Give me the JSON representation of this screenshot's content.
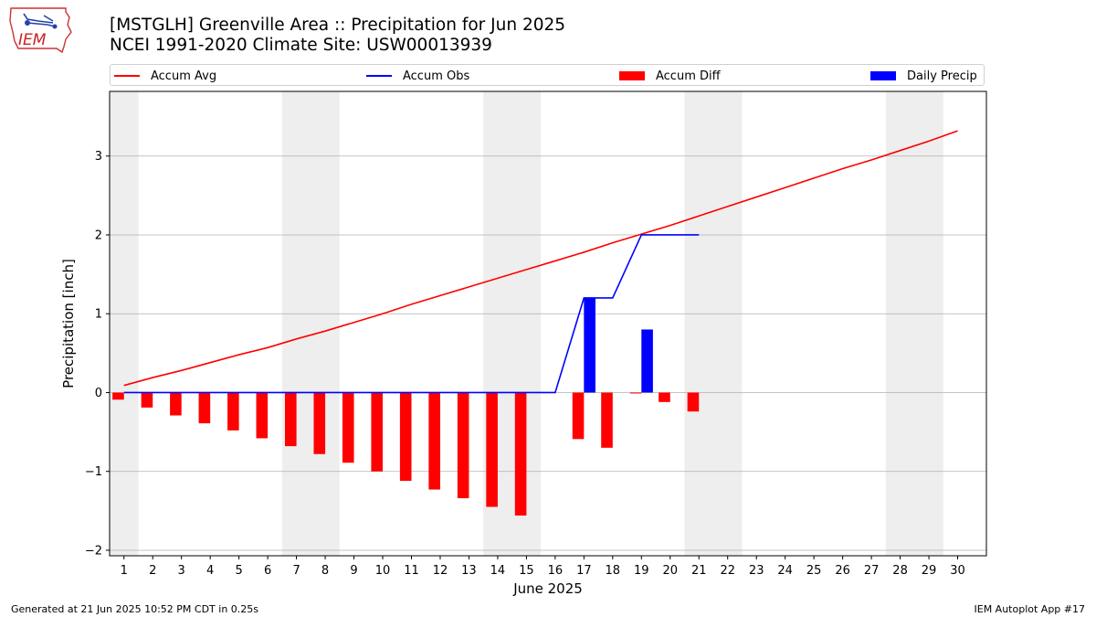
{
  "header": {
    "title_line1": "[MSTGLH] Greenville Area :: Precipitation for Jun 2025",
    "title_line2": "NCEI 1991-2020 Climate Site: USW00013939"
  },
  "logo": {
    "text": "IEM",
    "icon": "iem-iowa-logo"
  },
  "legend": [
    {
      "label": "Accum Avg",
      "kind": "line",
      "color": "#ff0000"
    },
    {
      "label": "Accum Obs",
      "kind": "line",
      "color": "#0000ff"
    },
    {
      "label": "Accum Diff",
      "kind": "box",
      "color": "#ff0000"
    },
    {
      "label": "Daily Precip",
      "kind": "box",
      "color": "#0000ff"
    }
  ],
  "footer": {
    "generated": "Generated at 21 Jun 2025 10:52 PM CDT in 0.25s",
    "app": "IEM Autoplot App #17"
  },
  "chart_data": {
    "type": "bar",
    "xlabel": "June 2025",
    "ylabel": "Precipitation [inch]",
    "xlim": [
      0.5,
      31
    ],
    "ylim": [
      -2.07,
      3.82
    ],
    "yticks": [
      -2,
      -1,
      0,
      1,
      2,
      3
    ],
    "ytick_labels": [
      "−2",
      "−1",
      "0",
      "1",
      "2",
      "3"
    ],
    "grid_y": true,
    "legend_position": "top",
    "days": [
      1,
      2,
      3,
      4,
      5,
      6,
      7,
      8,
      9,
      10,
      11,
      12,
      13,
      14,
      15,
      16,
      17,
      18,
      19,
      20,
      21,
      22,
      23,
      24,
      25,
      26,
      27,
      28,
      29,
      30
    ],
    "weekend_spans": [
      [
        0.5,
        1.5
      ],
      [
        6.5,
        8.5
      ],
      [
        13.5,
        15.5
      ],
      [
        20.5,
        22.5
      ],
      [
        27.5,
        29.5
      ]
    ],
    "colors": {
      "avg": "#ff0000",
      "obs": "#0000ff",
      "diff": "#ff0000",
      "daily": "#0000ff",
      "weekend": "#eeeeee",
      "grid": "#b0b0b0"
    },
    "series": [
      {
        "name": "Accum Avg",
        "kind": "line",
        "values": [
          0.09,
          0.19,
          0.28,
          0.38,
          0.48,
          0.57,
          0.68,
          0.78,
          0.89,
          1.0,
          1.12,
          1.23,
          1.34,
          1.45,
          1.56,
          1.67,
          1.78,
          1.9,
          2.01,
          2.12,
          2.24,
          2.36,
          2.48,
          2.6,
          2.72,
          2.84,
          2.95,
          3.07,
          3.19,
          3.32
        ]
      },
      {
        "name": "Accum Obs",
        "kind": "line",
        "values": [
          0,
          0,
          0,
          0,
          0,
          0,
          0,
          0,
          0,
          0,
          0,
          0,
          0,
          0,
          0,
          0,
          1.2,
          1.2,
          2.0,
          2.0,
          2.0
        ]
      },
      {
        "name": "Accum Diff",
        "kind": "bar",
        "values": [
          -0.09,
          -0.19,
          -0.29,
          -0.39,
          -0.48,
          -0.58,
          -0.68,
          -0.78,
          -0.89,
          -1.0,
          -1.12,
          -1.23,
          -1.34,
          -1.45,
          -1.56,
          null,
          -0.59,
          -0.7,
          -0.01,
          -0.12,
          -0.24
        ]
      },
      {
        "name": "Daily Precip",
        "kind": "bar",
        "values": [
          0,
          0,
          0,
          0,
          0,
          0,
          0,
          0,
          0,
          0,
          0,
          0,
          0,
          0,
          0,
          0,
          1.2,
          0,
          0.8,
          0,
          0
        ]
      }
    ]
  }
}
